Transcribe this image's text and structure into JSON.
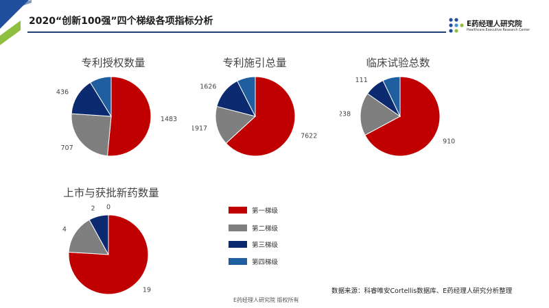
{
  "header": {
    "title": "2020“创新100强”四个梯级各项指标分析",
    "logo_text": "E药经理人研究院",
    "logo_subtext": "Healthcare Executive Research Center"
  },
  "legend": [
    {
      "label": "第一梯级",
      "color": "#c00000"
    },
    {
      "label": "第二梯级",
      "color": "#7f7f7f"
    },
    {
      "label": "第三梯级",
      "color": "#0b2a6f"
    },
    {
      "label": "第四梯级",
      "color": "#1f5fa0"
    }
  ],
  "source_note": "数据来源：科睿唯安Cortellis数据库、E药经理人研究分析整理",
  "footer": "E药经理人研究院  版权所有",
  "chart_data": [
    {
      "type": "pie",
      "title": "专利授权数量",
      "categories": [
        "第一梯级",
        "第二梯级",
        "第三梯级",
        "第四梯级"
      ],
      "values": [
        1483,
        707,
        436,
        253
      ]
    },
    {
      "type": "pie",
      "title": "专利施引总量",
      "categories": [
        "第一梯级",
        "第二梯级",
        "第三梯级",
        "第四梯级"
      ],
      "values": [
        7622,
        1917,
        1626,
        904
      ]
    },
    {
      "type": "pie",
      "title": "临床试验总数",
      "categories": [
        "第一梯级",
        "第二梯级",
        "第三梯级",
        "第四梯级"
      ],
      "values": [
        910,
        238,
        111,
        96
      ]
    },
    {
      "type": "pie",
      "title": "上市与获批新药数量",
      "categories": [
        "第一梯级",
        "第二梯级",
        "第三梯级",
        "第四梯级"
      ],
      "values": [
        19,
        4,
        2,
        0
      ]
    }
  ]
}
